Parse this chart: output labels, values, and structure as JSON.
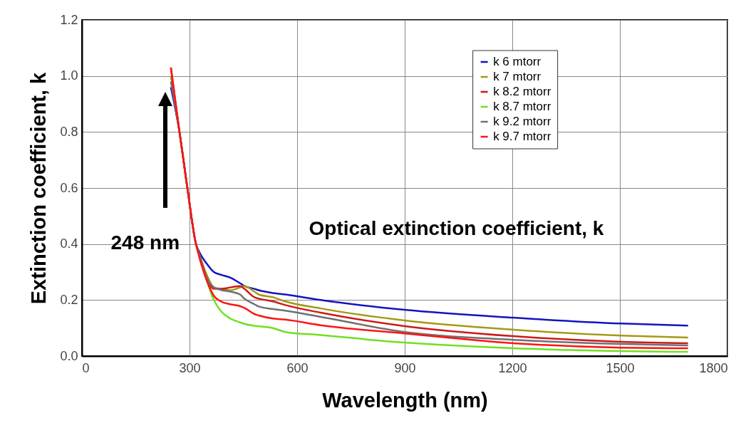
{
  "chart_data": {
    "type": "line",
    "xlabel": "Wavelength (nm)",
    "ylabel": "Extinction coefficient, k",
    "x": [
      248,
      272,
      294,
      318,
      328,
      348,
      368,
      388,
      414,
      441,
      453,
      481,
      493,
      533,
      567,
      666,
      900,
      1203,
      1505,
      1690
    ],
    "series": [
      {
        "name": "k 6 mtorr",
        "color": "#1414c0",
        "values": [
          0.96,
          0.8,
          0.6,
          0.4,
          0.37,
          0.33,
          0.3,
          0.29,
          0.28,
          0.26,
          0.25,
          0.24,
          0.235,
          0.225,
          0.22,
          0.2,
          0.165,
          0.137,
          0.116,
          0.109
        ]
      },
      {
        "name": "k 7 mtorr",
        "color": "#a39a14",
        "values": [
          1.0,
          0.8,
          0.6,
          0.4,
          0.36,
          0.29,
          0.245,
          0.24,
          0.235,
          0.245,
          0.25,
          0.23,
          0.22,
          0.21,
          0.195,
          0.17,
          0.127,
          0.094,
          0.073,
          0.066
        ]
      },
      {
        "name": "k 8.2 mtorr",
        "color": "#cc1a1a",
        "values": [
          1.03,
          0.8,
          0.6,
          0.4,
          0.36,
          0.28,
          0.24,
          0.24,
          0.245,
          0.25,
          0.24,
          0.21,
          0.205,
          0.195,
          0.182,
          0.155,
          0.107,
          0.071,
          0.051,
          0.046
        ]
      },
      {
        "name": "k 8.7 mtorr",
        "color": "#70e020",
        "values": [
          null,
          null,
          null,
          null,
          0.35,
          0.27,
          0.2,
          0.16,
          0.134,
          0.12,
          0.115,
          0.108,
          0.106,
          0.1,
          0.086,
          0.075,
          0.048,
          0.028,
          0.018,
          0.015
        ]
      },
      {
        "name": "k 9.2 mtorr",
        "color": "#707070",
        "values": [
          0.98,
          0.8,
          0.6,
          0.4,
          0.36,
          0.28,
          0.245,
          0.236,
          0.23,
          0.22,
          0.205,
          0.185,
          0.177,
          0.168,
          0.162,
          0.14,
          0.086,
          0.058,
          0.043,
          0.038
        ]
      },
      {
        "name": "k 9.7 mtorr",
        "color": "#ff1414",
        "values": [
          1.03,
          0.8,
          0.6,
          0.4,
          0.35,
          0.27,
          0.215,
          0.195,
          0.185,
          0.178,
          0.172,
          0.15,
          0.145,
          0.134,
          0.13,
          0.11,
          0.081,
          0.046,
          0.03,
          0.028
        ]
      }
    ],
    "xlim": [
      0,
      1800
    ],
    "xticks": [
      0,
      300,
      600,
      900,
      1200,
      1500,
      1800
    ],
    "ylim": [
      0,
      1.2
    ],
    "yticks": [
      {
        "value": 0,
        "label": "0.0"
      },
      0.2,
      0.4,
      0.6,
      0.8,
      {
        "value": 1,
        "label": "1.0"
      },
      1.2
    ],
    "grid": true,
    "legend": "top right",
    "annotations": [
      "248 nm",
      "Optical extinction coefficient, k"
    ]
  }
}
